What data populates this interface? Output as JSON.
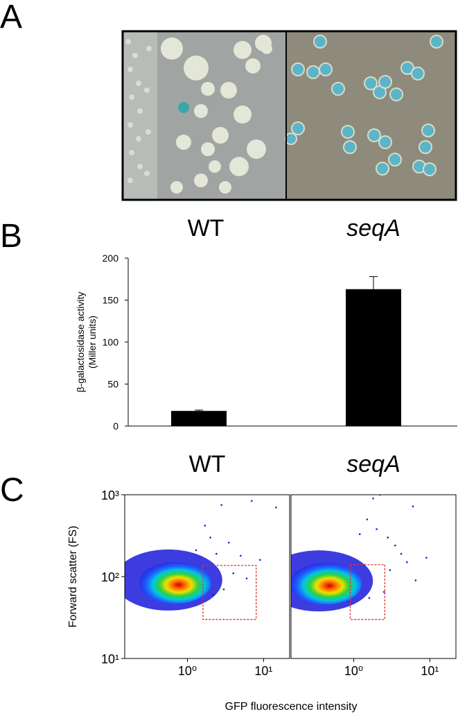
{
  "panel_labels": [
    "A",
    "B",
    "C"
  ],
  "chart_data": [
    {
      "type": "bar",
      "categories": [
        "WT",
        "seqA"
      ],
      "values": [
        18,
        163
      ],
      "errors": [
        1,
        15
      ],
      "ylabel": [
        "β-galactosidase activity",
        "(Miller units)"
      ],
      "ylim": [
        0,
        200
      ],
      "yticks": [
        0,
        50,
        100,
        150,
        200
      ],
      "color": "#000000"
    },
    {
      "type": "scatter",
      "title": "WT",
      "xlabel": "GFP fluorescence intensity",
      "ylabel": "Forward scatter (FS)",
      "log_scale": true,
      "xlim": [
        0.15,
        22
      ],
      "ylim": [
        10,
        1000
      ],
      "xticks": [
        {
          "value": 1,
          "label": "10⁰"
        },
        {
          "value": 10,
          "label": "10¹"
        }
      ],
      "yticks": [
        {
          "value": 10,
          "label": "10¹"
        },
        {
          "value": 100,
          "label": "10²"
        },
        {
          "value": 1000,
          "label": "10³"
        }
      ],
      "peak": {
        "x": 0.69,
        "y": 84
      },
      "gate": {
        "x": [
          1.6,
          8
        ],
        "y": [
          30,
          137
        ],
        "color": "#e0302a"
      },
      "color": "#1a1adc",
      "x": [
        2.8,
        7,
        14.6,
        2,
        1.7,
        3.5,
        5,
        9,
        1.3,
        2.4,
        4,
        6,
        3,
        2.2
      ],
      "y": [
        750,
        840,
        700,
        300,
        420,
        260,
        180,
        160,
        210,
        190,
        110,
        95,
        70,
        60
      ]
    },
    {
      "type": "scatter",
      "title": "seqA",
      "log_scale": true,
      "xlim": [
        0.15,
        22
      ],
      "ylim": [
        10,
        1000
      ],
      "xticks": [
        {
          "value": 1,
          "label": "10⁰"
        },
        {
          "value": 10,
          "label": "10¹"
        }
      ],
      "peak": {
        "x": 0.43,
        "y": 82
      },
      "gate": {
        "x": [
          0.9,
          2.56
        ],
        "y": [
          30,
          140
        ],
        "color": "#e0302a"
      },
      "color": "#1a1adc",
      "x": [
        1.8,
        2.2,
        6,
        1.5,
        2,
        2.8,
        3.5,
        1.2,
        4.2,
        5,
        9,
        3,
        2.5,
        1.6,
        6.5
      ],
      "y": [
        900,
        1000,
        720,
        500,
        380,
        300,
        240,
        330,
        190,
        150,
        170,
        120,
        65,
        55,
        90
      ]
    }
  ]
}
